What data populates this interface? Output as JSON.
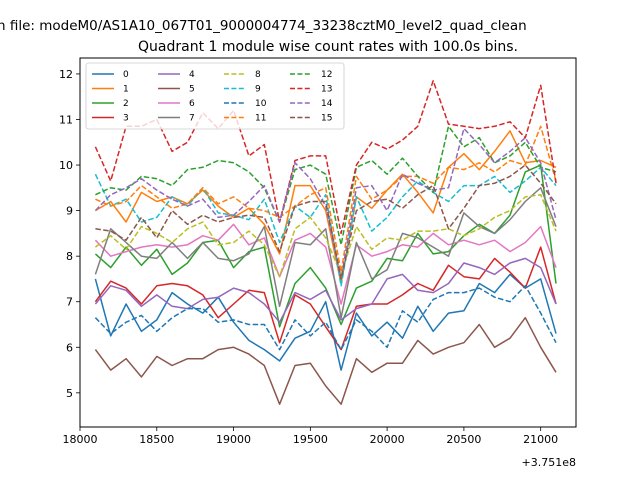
{
  "chart_data": {
    "type": "line",
    "suptitle": "n file: modeM0/AS1A10_067T01_9000004774_33238cztM0_level2_quad_clean",
    "title": "Quadrant 1 module wise count rates with 100.0s bins.",
    "xlabel": "",
    "ylabel": "",
    "x_offset_label": "+3.751e8",
    "x_offset": 375100000,
    "xlim": [
      18000,
      21230
    ],
    "ylim": [
      4.25,
      12.35
    ],
    "xticks": [
      18000,
      18500,
      19000,
      19500,
      20000,
      20500,
      21000
    ],
    "yticks": [
      5,
      6,
      7,
      8,
      9,
      10,
      11,
      12
    ],
    "legend_position": "upper-left",
    "legend_columns": 4,
    "grid": false,
    "x": [
      18100,
      18200,
      18300,
      18400,
      18500,
      18600,
      18700,
      18800,
      18900,
      19000,
      19100,
      19200,
      19300,
      19400,
      19500,
      19600,
      19700,
      19800,
      19900,
      20000,
      20100,
      20200,
      20300,
      20400,
      20500,
      20600,
      20700,
      20800,
      20900,
      21000,
      21100
    ],
    "series": [
      {
        "name": "0",
        "color": "#1f77b4",
        "dash": "solid",
        "values": [
          7.5,
          6.25,
          6.95,
          6.35,
          6.6,
          7.2,
          6.95,
          6.75,
          7.1,
          6.55,
          6.15,
          5.95,
          5.7,
          6.2,
          6.35,
          7.0,
          5.5,
          6.75,
          6.25,
          6.55,
          6.2,
          6.9,
          6.35,
          6.75,
          6.8,
          7.4,
          7.2,
          7.6,
          7.3,
          7.5,
          6.3
        ]
      },
      {
        "name": "1",
        "color": "#ff7f0e",
        "dash": "solid",
        "values": [
          9.0,
          9.2,
          8.75,
          9.4,
          9.2,
          9.3,
          9.15,
          9.45,
          9.1,
          8.85,
          9.05,
          8.7,
          8.05,
          9.55,
          9.55,
          9.0,
          7.4,
          9.3,
          9.05,
          9.45,
          9.8,
          9.4,
          8.95,
          9.95,
          10.25,
          9.9,
          10.3,
          10.75,
          10.05,
          10.1,
          9.95
        ]
      },
      {
        "name": "2",
        "color": "#2ca02c",
        "dash": "solid",
        "values": [
          8.05,
          7.75,
          8.2,
          7.8,
          8.15,
          7.6,
          7.85,
          8.3,
          8.35,
          7.75,
          8.1,
          8.2,
          6.45,
          7.4,
          7.75,
          7.3,
          6.5,
          7.3,
          7.45,
          7.95,
          7.9,
          8.5,
          8.05,
          8.1,
          8.45,
          8.7,
          8.5,
          8.9,
          9.85,
          10.0,
          7.4
        ]
      },
      {
        "name": "3",
        "color": "#d62728",
        "dash": "solid",
        "values": [
          7.0,
          7.45,
          7.3,
          6.95,
          7.35,
          7.4,
          7.35,
          7.15,
          6.65,
          6.95,
          7.25,
          7.2,
          6.1,
          7.15,
          6.95,
          6.45,
          5.95,
          6.9,
          6.95,
          6.95,
          7.15,
          7.4,
          7.25,
          7.8,
          7.55,
          7.5,
          7.95,
          7.65,
          7.3,
          8.2,
          6.95
        ]
      },
      {
        "name": "4",
        "color": "#9467bd",
        "dash": "solid",
        "values": [
          6.95,
          7.35,
          7.25,
          6.9,
          7.15,
          6.9,
          6.85,
          7.05,
          7.1,
          7.3,
          7.2,
          6.95,
          6.55,
          7.2,
          7.05,
          7.25,
          6.6,
          6.85,
          6.95,
          7.5,
          7.6,
          7.25,
          7.2,
          7.4,
          7.85,
          7.75,
          7.6,
          7.85,
          7.95,
          7.75,
          6.95
        ]
      },
      {
        "name": "5",
        "color": "#8c564b",
        "dash": "solid",
        "values": [
          5.95,
          5.5,
          5.75,
          5.35,
          5.8,
          5.6,
          5.75,
          5.75,
          5.95,
          6.0,
          5.85,
          5.6,
          4.75,
          5.6,
          5.65,
          5.15,
          4.75,
          5.75,
          5.45,
          5.65,
          5.65,
          6.15,
          5.85,
          6.0,
          6.1,
          6.5,
          6.0,
          6.2,
          6.65,
          6.0,
          5.45
        ]
      },
      {
        "name": "6",
        "color": "#e377c2",
        "dash": "solid",
        "values": [
          8.35,
          8.0,
          8.1,
          8.2,
          8.25,
          8.2,
          8.25,
          8.45,
          8.35,
          8.7,
          8.25,
          8.4,
          7.55,
          8.35,
          8.5,
          8.2,
          6.95,
          8.25,
          8.0,
          8.1,
          8.25,
          8.2,
          8.5,
          8.25,
          8.35,
          8.25,
          8.35,
          8.1,
          8.3,
          8.65,
          7.75
        ]
      },
      {
        "name": "7",
        "color": "#7f7f7f",
        "dash": "solid",
        "values": [
          7.6,
          8.6,
          8.3,
          8.0,
          7.95,
          8.3,
          7.95,
          8.3,
          7.95,
          7.9,
          8.05,
          8.65,
          6.9,
          8.3,
          8.25,
          8.6,
          6.65,
          8.3,
          7.5,
          7.7,
          8.5,
          8.4,
          8.2,
          8.0,
          8.95,
          8.65,
          8.5,
          8.8,
          9.2,
          9.5,
          8.65
        ]
      },
      {
        "name": "8",
        "color": "#bcbd22",
        "dash": "dashed",
        "values": [
          8.2,
          8.45,
          8.15,
          8.65,
          8.5,
          8.3,
          8.6,
          8.75,
          8.25,
          8.3,
          8.55,
          8.25,
          7.55,
          8.6,
          8.85,
          8.4,
          7.6,
          8.65,
          8.15,
          8.4,
          8.35,
          8.55,
          8.55,
          8.6,
          8.45,
          8.6,
          8.85,
          9.0,
          9.3,
          9.35,
          8.55
        ]
      },
      {
        "name": "9",
        "color": "#17becf",
        "dash": "dashed",
        "values": [
          9.8,
          9.1,
          9.25,
          8.75,
          8.85,
          9.3,
          9.1,
          9.5,
          8.95,
          8.9,
          8.8,
          9.25,
          8.3,
          9.1,
          8.85,
          9.35,
          7.35,
          9.3,
          8.55,
          8.85,
          9.3,
          9.65,
          9.4,
          9.2,
          9.55,
          9.55,
          9.75,
          9.4,
          9.65,
          9.95,
          9.55
        ]
      },
      {
        "name": "10",
        "color": "#1f77b4",
        "dash": "dashed",
        "values": [
          6.65,
          6.3,
          6.55,
          6.7,
          6.35,
          6.65,
          6.85,
          6.85,
          6.55,
          6.6,
          6.5,
          6.5,
          5.95,
          6.6,
          6.25,
          6.55,
          5.95,
          6.6,
          6.35,
          6.0,
          6.8,
          6.55,
          7.05,
          7.2,
          7.2,
          7.3,
          7.1,
          7.0,
          7.35,
          6.75,
          6.1
        ]
      },
      {
        "name": "11",
        "color": "#ff7f0e",
        "dash": "dashed",
        "values": [
          9.25,
          9.1,
          9.2,
          9.55,
          9.3,
          9.05,
          9.15,
          9.5,
          9.15,
          9.3,
          9.05,
          9.0,
          8.85,
          9.1,
          9.35,
          9.5,
          7.65,
          9.75,
          9.25,
          9.45,
          9.75,
          9.75,
          9.6,
          9.95,
          9.9,
          10.05,
          9.85,
          10.1,
          10.0,
          10.85,
          9.65
        ]
      },
      {
        "name": "12",
        "color": "#2ca02c",
        "dash": "dashed",
        "values": [
          9.35,
          9.5,
          9.45,
          9.75,
          9.7,
          9.55,
          9.9,
          9.95,
          10.1,
          10.05,
          9.85,
          9.5,
          8.75,
          9.9,
          10.0,
          9.8,
          8.25,
          9.95,
          10.1,
          9.8,
          10.15,
          9.75,
          9.4,
          10.85,
          10.4,
          10.6,
          10.05,
          10.2,
          10.5,
          9.95,
          9.85
        ]
      },
      {
        "name": "13",
        "color": "#d62728",
        "dash": "dashed",
        "values": [
          10.4,
          9.65,
          10.85,
          10.85,
          11.0,
          10.3,
          10.5,
          11.15,
          10.8,
          11.2,
          10.2,
          10.45,
          8.75,
          10.1,
          10.2,
          10.2,
          8.5,
          10.0,
          10.5,
          10.35,
          10.55,
          10.85,
          11.85,
          10.9,
          10.85,
          10.8,
          10.85,
          10.95,
          10.6,
          11.75,
          9.6
        ]
      },
      {
        "name": "14",
        "color": "#9467bd",
        "dash": "dashed",
        "values": [
          9.0,
          9.35,
          9.5,
          9.7,
          9.45,
          9.25,
          9.1,
          9.25,
          8.85,
          8.9,
          9.2,
          9.55,
          8.75,
          10.05,
          9.7,
          9.1,
          7.5,
          9.5,
          9.55,
          9.0,
          9.8,
          9.6,
          9.45,
          9.5,
          10.8,
          10.45,
          10.05,
          10.3,
          10.6,
          10.05,
          8.8
        ]
      },
      {
        "name": "15",
        "color": "#8c564b",
        "dash": "dashed",
        "values": [
          8.6,
          8.55,
          8.35,
          8.85,
          8.4,
          9.0,
          8.7,
          8.9,
          8.75,
          8.85,
          8.9,
          8.85,
          8.1,
          9.1,
          9.2,
          9.2,
          7.5,
          9.0,
          9.2,
          9.25,
          9.05,
          9.35,
          9.55,
          8.6,
          9.05,
          9.55,
          9.6,
          9.75,
          10.0,
          9.6,
          9.15
        ]
      }
    ]
  }
}
